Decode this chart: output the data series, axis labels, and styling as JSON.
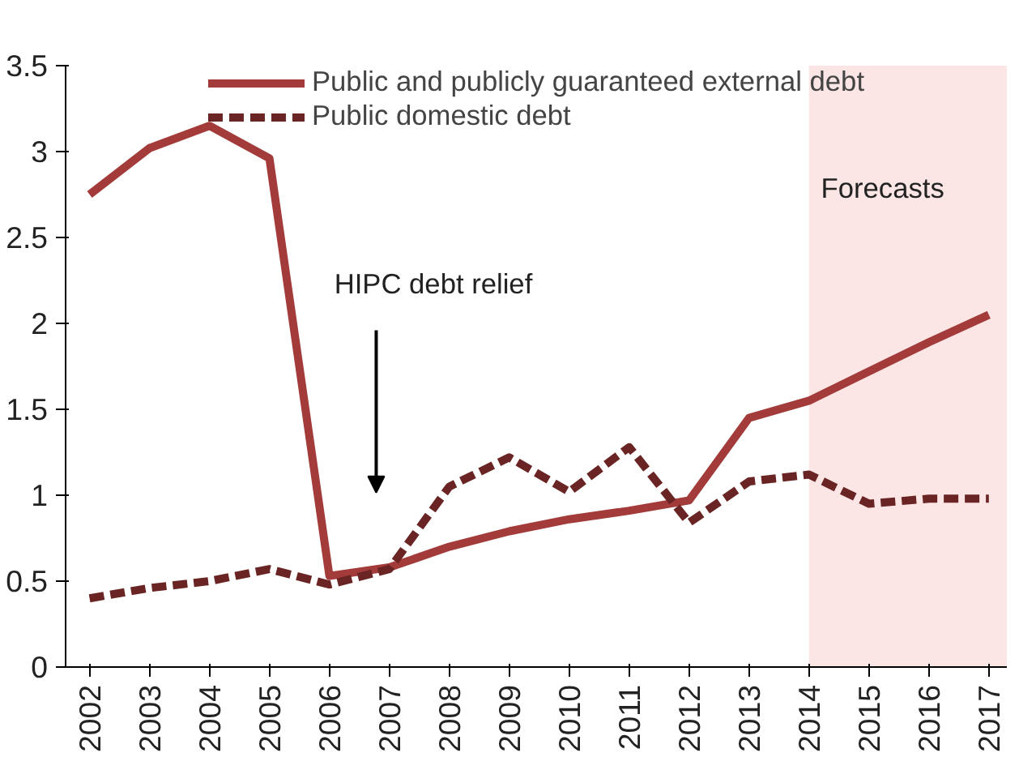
{
  "chart_data": {
    "type": "line",
    "x": [
      2002,
      2003,
      2004,
      2005,
      2006,
      2007,
      2008,
      2009,
      2010,
      2011,
      2012,
      2013,
      2014,
      2015,
      2016,
      2017
    ],
    "series": [
      {
        "name": "Public and publicly guaranteed external debt",
        "color": "#a33b3b",
        "line_style": "solid",
        "values": [
          2.75,
          3.02,
          3.15,
          2.96,
          0.53,
          0.58,
          0.7,
          0.79,
          0.86,
          0.91,
          0.97,
          1.45,
          1.55,
          1.72,
          1.89,
          2.05
        ]
      },
      {
        "name": "Public domestic debt",
        "color": "#6b2424",
        "line_style": "dashed",
        "values": [
          0.4,
          0.46,
          0.5,
          0.57,
          0.48,
          0.57,
          1.05,
          1.22,
          1.02,
          1.28,
          0.84,
          1.08,
          1.12,
          0.95,
          0.98,
          0.98
        ]
      }
    ],
    "xlim": [
      2001.6,
      2017.3
    ],
    "xticks": [
      2002,
      2003,
      2004,
      2005,
      2006,
      2007,
      2008,
      2009,
      2010,
      2011,
      2012,
      2013,
      2014,
      2015,
      2016,
      2017
    ],
    "ylim": [
      0,
      3.5
    ],
    "yticks": [
      0,
      0.5,
      1,
      1.5,
      2,
      2.5,
      3,
      3.5
    ],
    "bands": [
      {
        "axis": "x",
        "from": 2014,
        "to": 2017.3,
        "label": "Forecasts",
        "color": "#fbe5e5"
      }
    ],
    "annotations": [
      "HIPC debt relief"
    ],
    "legend": "top",
    "grid": false,
    "marker": "none"
  }
}
